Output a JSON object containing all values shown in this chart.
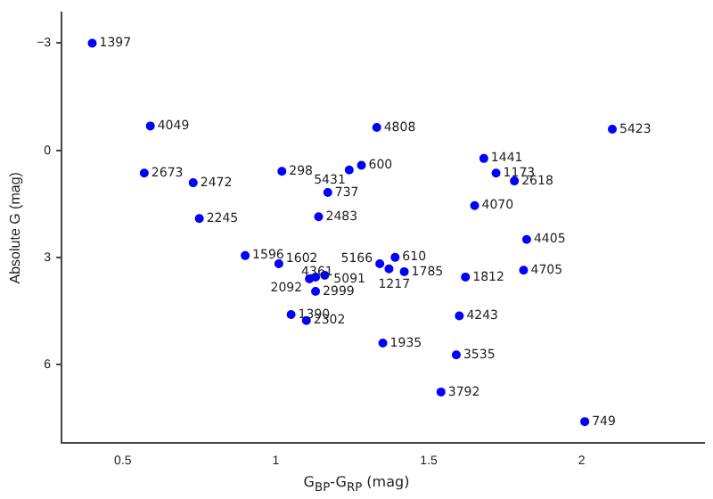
{
  "chart_data": {
    "type": "scatter",
    "xlabel": "G$_{BP}$-G$_{RP}$ (mag)",
    "ylabel": "Absolute G (mag)",
    "xlim": [
      0.3,
      2.4
    ],
    "xticks": [
      0.5,
      1.0,
      1.5,
      2.0
    ],
    "ylim": [
      8.2,
      -3.85
    ],
    "yticks": [
      {
        "value": -3,
        "label": "−3"
      },
      0,
      3,
      6
    ],
    "grid": false,
    "legend": false,
    "marker": "circle",
    "series": [
      {
        "color": "#0000ff",
        "x": [
          0.4,
          0.59,
          0.57,
          0.73,
          0.75,
          1.02,
          1.24,
          1.28,
          1.17,
          1.14,
          1.33,
          2.1,
          1.68,
          1.72,
          1.78,
          1.65,
          1.82,
          1.81,
          1.62,
          1.34,
          1.39,
          1.37,
          1.42,
          0.9,
          1.01,
          1.13,
          1.11,
          1.16,
          1.13,
          1.05,
          1.1,
          1.6,
          1.35,
          1.59,
          1.54,
          2.01
        ],
        "values": [
          -3.0,
          -0.68,
          0.64,
          0.91,
          1.91,
          0.59,
          0.55,
          0.42,
          1.18,
          1.86,
          -0.64,
          -0.59,
          0.23,
          0.64,
          0.86,
          1.55,
          2.5,
          3.36,
          3.55,
          3.18,
          3.0,
          3.32,
          3.4,
          2.95,
          3.18,
          3.55,
          3.6,
          3.5,
          3.95,
          4.6,
          4.77,
          4.64,
          5.4,
          5.73,
          6.77,
          7.6
        ]
      }
    ],
    "annotations": [
      {
        "text": "1397",
        "x": 0.4,
        "y": -3.0
      },
      {
        "text": "4049",
        "x": 0.59,
        "y": -0.68
      },
      {
        "text": "2673",
        "x": 0.57,
        "y": 0.64
      },
      {
        "text": "2472",
        "x": 0.73,
        "y": 0.91
      },
      {
        "text": "2245",
        "x": 0.75,
        "y": 1.91
      },
      {
        "text": "298",
        "x": 1.02,
        "y": 0.59
      },
      {
        "text": "5431",
        "x": 1.24,
        "y": 0.55
      },
      {
        "text": "600",
        "x": 1.28,
        "y": 0.42
      },
      {
        "text": "737",
        "x": 1.17,
        "y": 1.18
      },
      {
        "text": "2483",
        "x": 1.14,
        "y": 1.86
      },
      {
        "text": "4808",
        "x": 1.33,
        "y": -0.64
      },
      {
        "text": "5423",
        "x": 2.1,
        "y": -0.59
      },
      {
        "text": "1441",
        "x": 1.68,
        "y": 0.23
      },
      {
        "text": "1173",
        "x": 1.72,
        "y": 0.64
      },
      {
        "text": "2618",
        "x": 1.78,
        "y": 0.86
      },
      {
        "text": "4070",
        "x": 1.65,
        "y": 1.55
      },
      {
        "text": "4405",
        "x": 1.82,
        "y": 2.5
      },
      {
        "text": "4705",
        "x": 1.81,
        "y": 3.36
      },
      {
        "text": "1812",
        "x": 1.62,
        "y": 3.55
      },
      {
        "text": "5166",
        "x": 1.34,
        "y": 3.18
      },
      {
        "text": "610",
        "x": 1.39,
        "y": 3.0
      },
      {
        "text": "1217",
        "x": 1.37,
        "y": 3.32
      },
      {
        "text": "1785",
        "x": 1.42,
        "y": 3.4
      },
      {
        "text": "1596",
        "x": 0.9,
        "y": 2.95
      },
      {
        "text": "1602",
        "x": 1.01,
        "y": 3.18
      },
      {
        "text": "4361",
        "x": 1.13,
        "y": 3.55
      },
      {
        "text": "2092",
        "x": 1.11,
        "y": 3.6
      },
      {
        "text": "5091",
        "x": 1.16,
        "y": 3.5
      },
      {
        "text": "2999",
        "x": 1.13,
        "y": 3.95
      },
      {
        "text": "1390",
        "x": 1.05,
        "y": 4.6
      },
      {
        "text": "2302",
        "x": 1.1,
        "y": 4.77
      },
      {
        "text": "4243",
        "x": 1.6,
        "y": 4.64
      },
      {
        "text": "1935",
        "x": 1.35,
        "y": 5.4
      },
      {
        "text": "3535",
        "x": 1.59,
        "y": 5.73
      },
      {
        "text": "3792",
        "x": 1.54,
        "y": 6.77
      },
      {
        "text": "749",
        "x": 2.01,
        "y": 7.6
      }
    ]
  }
}
